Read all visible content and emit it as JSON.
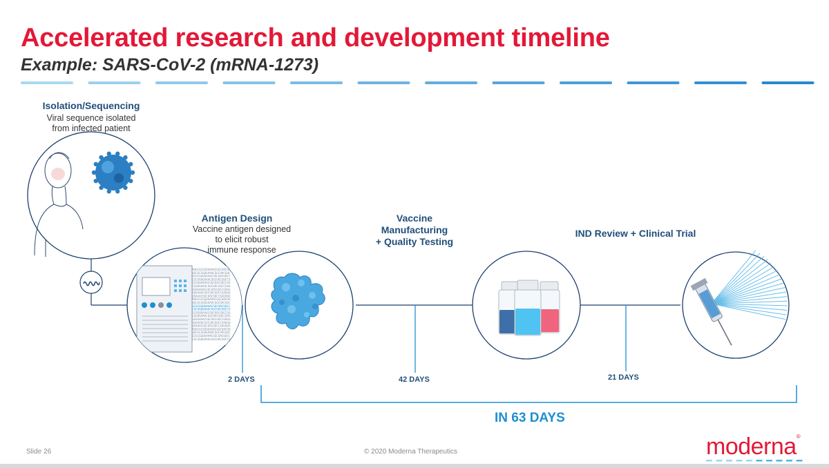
{
  "title": "Accelerated research and development timeline",
  "subtitle": "Example: SARS-CoV-2 (mRNA-1273)",
  "colors": {
    "title_red": "#e31837",
    "heading_navy": "#1f4e79",
    "timeline_blue": "#1e8fd0",
    "line_navy": "#1c3f6e",
    "stripe_blue": "#4fb3e6",
    "vial_left": "#3f6fa8",
    "vial_mid": "#4fc3f1",
    "vial_right": "#f0647e"
  },
  "steps": [
    {
      "heading": "Isolation/Sequencing",
      "description": [
        "Viral sequence isolated",
        "from infected patient"
      ],
      "icon": "patient-virus-icon"
    },
    {
      "heading": "Antigen Design",
      "description": [
        "Vaccine antigen designed",
        "to elicit robust",
        "immune response"
      ],
      "icon": "protein-antigen-icon"
    },
    {
      "heading": [
        "Vaccine",
        "Manufacturing",
        "+ Quality Testing"
      ],
      "description": [],
      "icon": "vials-icon"
    },
    {
      "heading": "IND Review + Clinical Trial",
      "description": [],
      "icon": "syringe-icon"
    }
  ],
  "intermediate_icons": [
    "mrna-strand-icon",
    "sequencer-machine-icon"
  ],
  "durations": [
    {
      "label": "2 DAYS",
      "days": 2
    },
    {
      "label": "42 DAYS",
      "days": 42
    },
    {
      "label": "21 DAYS",
      "days": 21
    }
  ],
  "total_label": "IN 63 DAYS",
  "total_days": 63,
  "footer": {
    "slide": "Slide 26",
    "copyright": "© 2020 Moderna Therapeutics"
  },
  "logo": {
    "text": "moderna",
    "mark": "®"
  }
}
